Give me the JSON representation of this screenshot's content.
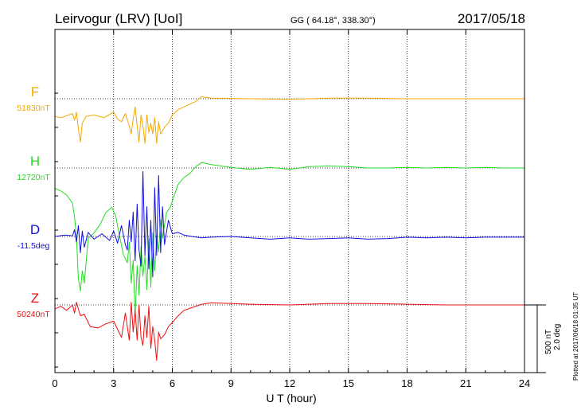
{
  "header": {
    "station": "Leirvogur (LRV)  [UoI]",
    "coords": "GG ( 64.18°, 338.30°)",
    "date": "2017/05/18"
  },
  "chart_data": {
    "type": "line",
    "xlabel": "U T (hour)",
    "xlim": [
      0,
      24
    ],
    "xticks": [
      0,
      3,
      6,
      9,
      12,
      15,
      18,
      21,
      24
    ],
    "grid": true,
    "scale_bar": {
      "line1": "500 nT",
      "line2": "2.0 deg"
    },
    "plotted_note": "Plotted at 2017/06/18 01:35 UT",
    "series": [
      {
        "name": "F",
        "baseline_label": "51830nT",
        "color": "#f5a800",
        "baseline": 51830,
        "x": [
          0,
          0.3,
          0.6,
          0.9,
          1.0,
          1.1,
          1.2,
          1.3,
          1.4,
          1.6,
          2.0,
          2.5,
          3.0,
          3.2,
          3.4,
          3.6,
          3.8,
          3.9,
          4.0,
          4.1,
          4.2,
          4.3,
          4.4,
          4.5,
          4.6,
          4.7,
          4.8,
          4.9,
          5.0,
          5.1,
          5.2,
          5.3,
          5.4,
          5.6,
          5.8,
          6.0,
          6.3,
          6.6,
          6.9,
          7.2,
          7.5,
          8,
          10,
          12,
          13,
          14,
          16,
          18,
          20,
          22,
          24
        ],
        "y": [
          -130,
          -140,
          -125,
          -110,
          -160,
          -100,
          -220,
          -320,
          -180,
          -130,
          -120,
          -140,
          -100,
          -150,
          -170,
          -110,
          -200,
          -260,
          -150,
          -60,
          -200,
          -320,
          -120,
          -200,
          -330,
          -120,
          -250,
          -180,
          -260,
          -140,
          -330,
          -170,
          -260,
          -210,
          -180,
          -120,
          -80,
          -60,
          -40,
          -20,
          15,
          5,
          0,
          -5,
          0,
          5,
          5,
          0,
          0,
          0,
          0
        ]
      },
      {
        "name": "H",
        "baseline_label": "12720nT",
        "color": "#22dd22",
        "baseline": 12720,
        "x": [
          0,
          0.3,
          0.6,
          0.9,
          1.0,
          1.1,
          1.2,
          1.3,
          1.4,
          1.5,
          1.7,
          2.0,
          2.3,
          2.6,
          2.9,
          3.1,
          3.3,
          3.5,
          3.7,
          3.8,
          3.9,
          4.0,
          4.1,
          4.2,
          4.3,
          4.4,
          4.5,
          4.6,
          4.7,
          4.8,
          4.9,
          5.0,
          5.1,
          5.2,
          5.3,
          5.4,
          5.5,
          5.7,
          5.9,
          6.1,
          6.3,
          6.6,
          6.9,
          7.2,
          7.5,
          8,
          9,
          10,
          11,
          12,
          13,
          14,
          15,
          16,
          17,
          18,
          19,
          20,
          21,
          22,
          23,
          24
        ],
        "y": [
          -150,
          -170,
          -200,
          -260,
          -360,
          -500,
          -820,
          -910,
          -760,
          -850,
          -520,
          -480,
          -420,
          -330,
          -290,
          -350,
          -500,
          -640,
          -700,
          -550,
          -850,
          -680,
          -1100,
          -720,
          -940,
          -580,
          -800,
          -650,
          -900,
          -520,
          -880,
          -480,
          -760,
          -500,
          -620,
          -380,
          -520,
          -330,
          -290,
          -200,
          -120,
          -70,
          -40,
          10,
          40,
          25,
          5,
          -10,
          5,
          -10,
          10,
          15,
          10,
          0,
          0,
          5,
          0,
          5,
          0,
          5,
          0,
          0
        ]
      },
      {
        "name": "D",
        "baseline_label": "-11.5deg",
        "color": "#1010dd",
        "baseline": -11.5,
        "x": [
          0,
          0.5,
          0.9,
          1.0,
          1.1,
          1.2,
          1.3,
          1.4,
          1.5,
          1.7,
          2.0,
          2.4,
          2.8,
          3.0,
          3.2,
          3.4,
          3.6,
          3.7,
          3.8,
          3.9,
          4.0,
          4.1,
          4.2,
          4.3,
          4.4,
          4.5,
          4.6,
          4.7,
          4.8,
          4.9,
          5.0,
          5.1,
          5.2,
          5.3,
          5.4,
          5.5,
          5.6,
          5.8,
          6.0,
          6.3,
          6.6,
          7,
          7.5,
          8,
          9,
          10,
          11,
          12,
          13,
          14,
          15,
          16,
          17,
          18,
          19,
          20,
          21,
          22,
          23,
          24
        ],
        "y": [
          0,
          10,
          5,
          50,
          -40,
          80,
          -120,
          40,
          -80,
          30,
          -20,
          20,
          -30,
          40,
          -50,
          80,
          -60,
          -100,
          120,
          -40,
          180,
          -180,
          240,
          -100,
          -220,
          480,
          -140,
          220,
          -240,
          120,
          -300,
          360,
          -140,
          450,
          -120,
          220,
          -60,
          120,
          20,
          30,
          10,
          0,
          -10,
          -5,
          0,
          -10,
          -20,
          -10,
          -20,
          -15,
          -10,
          -20,
          -15,
          -5,
          -10,
          -5,
          -10,
          -5,
          -5,
          -5
        ]
      },
      {
        "name": "Z",
        "baseline_label": "50240nT",
        "color": "#ee1111",
        "baseline": 50240,
        "x": [
          0,
          0.3,
          0.6,
          0.9,
          1.0,
          1.1,
          1.2,
          1.3,
          1.5,
          1.8,
          2.2,
          2.6,
          3.0,
          3.2,
          3.4,
          3.6,
          3.8,
          3.9,
          4.0,
          4.1,
          4.2,
          4.3,
          4.4,
          4.5,
          4.6,
          4.7,
          4.8,
          4.9,
          5.0,
          5.1,
          5.2,
          5.3,
          5.4,
          5.6,
          5.8,
          6.0,
          6.3,
          6.6,
          7,
          7.5,
          8,
          9,
          10,
          12,
          14,
          15,
          16,
          18,
          20,
          22,
          24
        ],
        "y": [
          -30,
          -10,
          -40,
          0,
          -60,
          20,
          -30,
          -80,
          -70,
          -160,
          -170,
          -140,
          -120,
          -180,
          -240,
          -60,
          -260,
          20,
          -200,
          -40,
          -260,
          0,
          -240,
          -300,
          -80,
          -240,
          -10,
          -320,
          -160,
          -260,
          -410,
          -200,
          -250,
          -220,
          -160,
          -130,
          -80,
          -40,
          -20,
          5,
          15,
          10,
          5,
          0,
          10,
          10,
          10,
          5,
          0,
          0,
          0
        ]
      }
    ]
  }
}
